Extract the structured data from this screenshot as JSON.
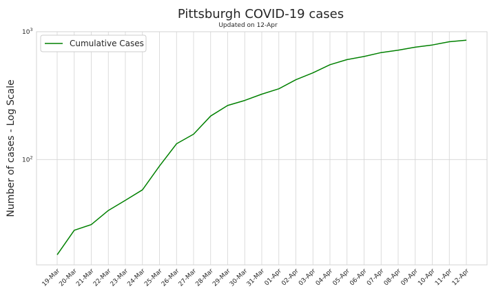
{
  "title": "Pittsburgh COVID-19 cases",
  "subtitle": "Updated on 12-Apr",
  "colors": {
    "line": "#008000",
    "grid": "#d3d3d3",
    "background": "#ffffff",
    "text": "#262626"
  },
  "chart_data": {
    "type": "line",
    "title": "Pittsburgh COVID-19 cases",
    "subtitle": "Updated on 12-Apr",
    "xlabel": "",
    "ylabel": "Number of cases - Log Scale",
    "yscale": "log",
    "ylim": [
      15,
      1000
    ],
    "y_ticks": [
      {
        "value": 100,
        "base": "10",
        "exp": "2"
      },
      {
        "value": 1000,
        "base": "10",
        "exp": "3"
      }
    ],
    "grid": true,
    "legend_position": "top-left",
    "categories": [
      "19-Mar",
      "20-Mar",
      "21-Mar",
      "22-Mar",
      "23-Mar",
      "24-Mar",
      "25-Mar",
      "26-Mar",
      "27-Mar",
      "28-Mar",
      "29-Mar",
      "30-Mar",
      "31-Mar",
      "01-Apr",
      "02-Apr",
      "03-Apr",
      "04-Apr",
      "05-Apr",
      "06-Apr",
      "07-Apr",
      "08-Apr",
      "09-Apr",
      "10-Apr",
      "11-Apr",
      "12-Apr"
    ],
    "series": [
      {
        "name": "Cumulative Cases",
        "color": "#008000",
        "values": [
          18,
          28,
          31,
          40,
          48,
          58,
          89,
          133,
          158,
          219,
          265,
          290,
          325,
          358,
          421,
          477,
          552,
          605,
          640,
          687,
          718,
          757,
          788,
          835,
          858
        ]
      }
    ]
  }
}
